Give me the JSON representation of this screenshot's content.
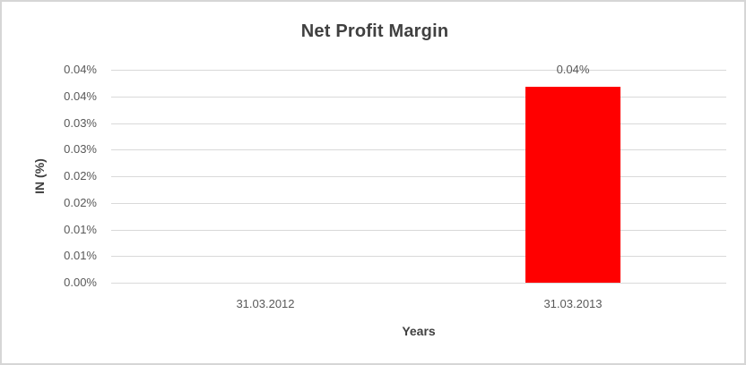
{
  "chart_data": {
    "type": "bar",
    "title": "Net Profit Margin",
    "xlabel": "Years",
    "ylabel": "IN (%)",
    "categories": [
      "31.03.2012",
      "31.03.2013"
    ],
    "series": [
      {
        "name": "Net Profit Margin",
        "values": [
          0,
          0.0368
        ],
        "data_labels": [
          "",
          "0.04%"
        ]
      }
    ],
    "ylim": [
      0,
      0.04
    ],
    "ytick_labels_top_to_bottom": [
      "0.04%",
      "0.04%",
      "0.03%",
      "0.03%",
      "0.02%",
      "0.02%",
      "0.01%",
      "0.01%",
      "0.00%"
    ],
    "grid": true,
    "legend": false,
    "colors": {
      "bar": "#ff0000",
      "gridline": "#d9d9d9",
      "title_text": "#404040",
      "axis_title_text": "#404040",
      "tick_text": "#595959",
      "chart_border": "#d6d6d6",
      "background": "#ffffff"
    }
  }
}
